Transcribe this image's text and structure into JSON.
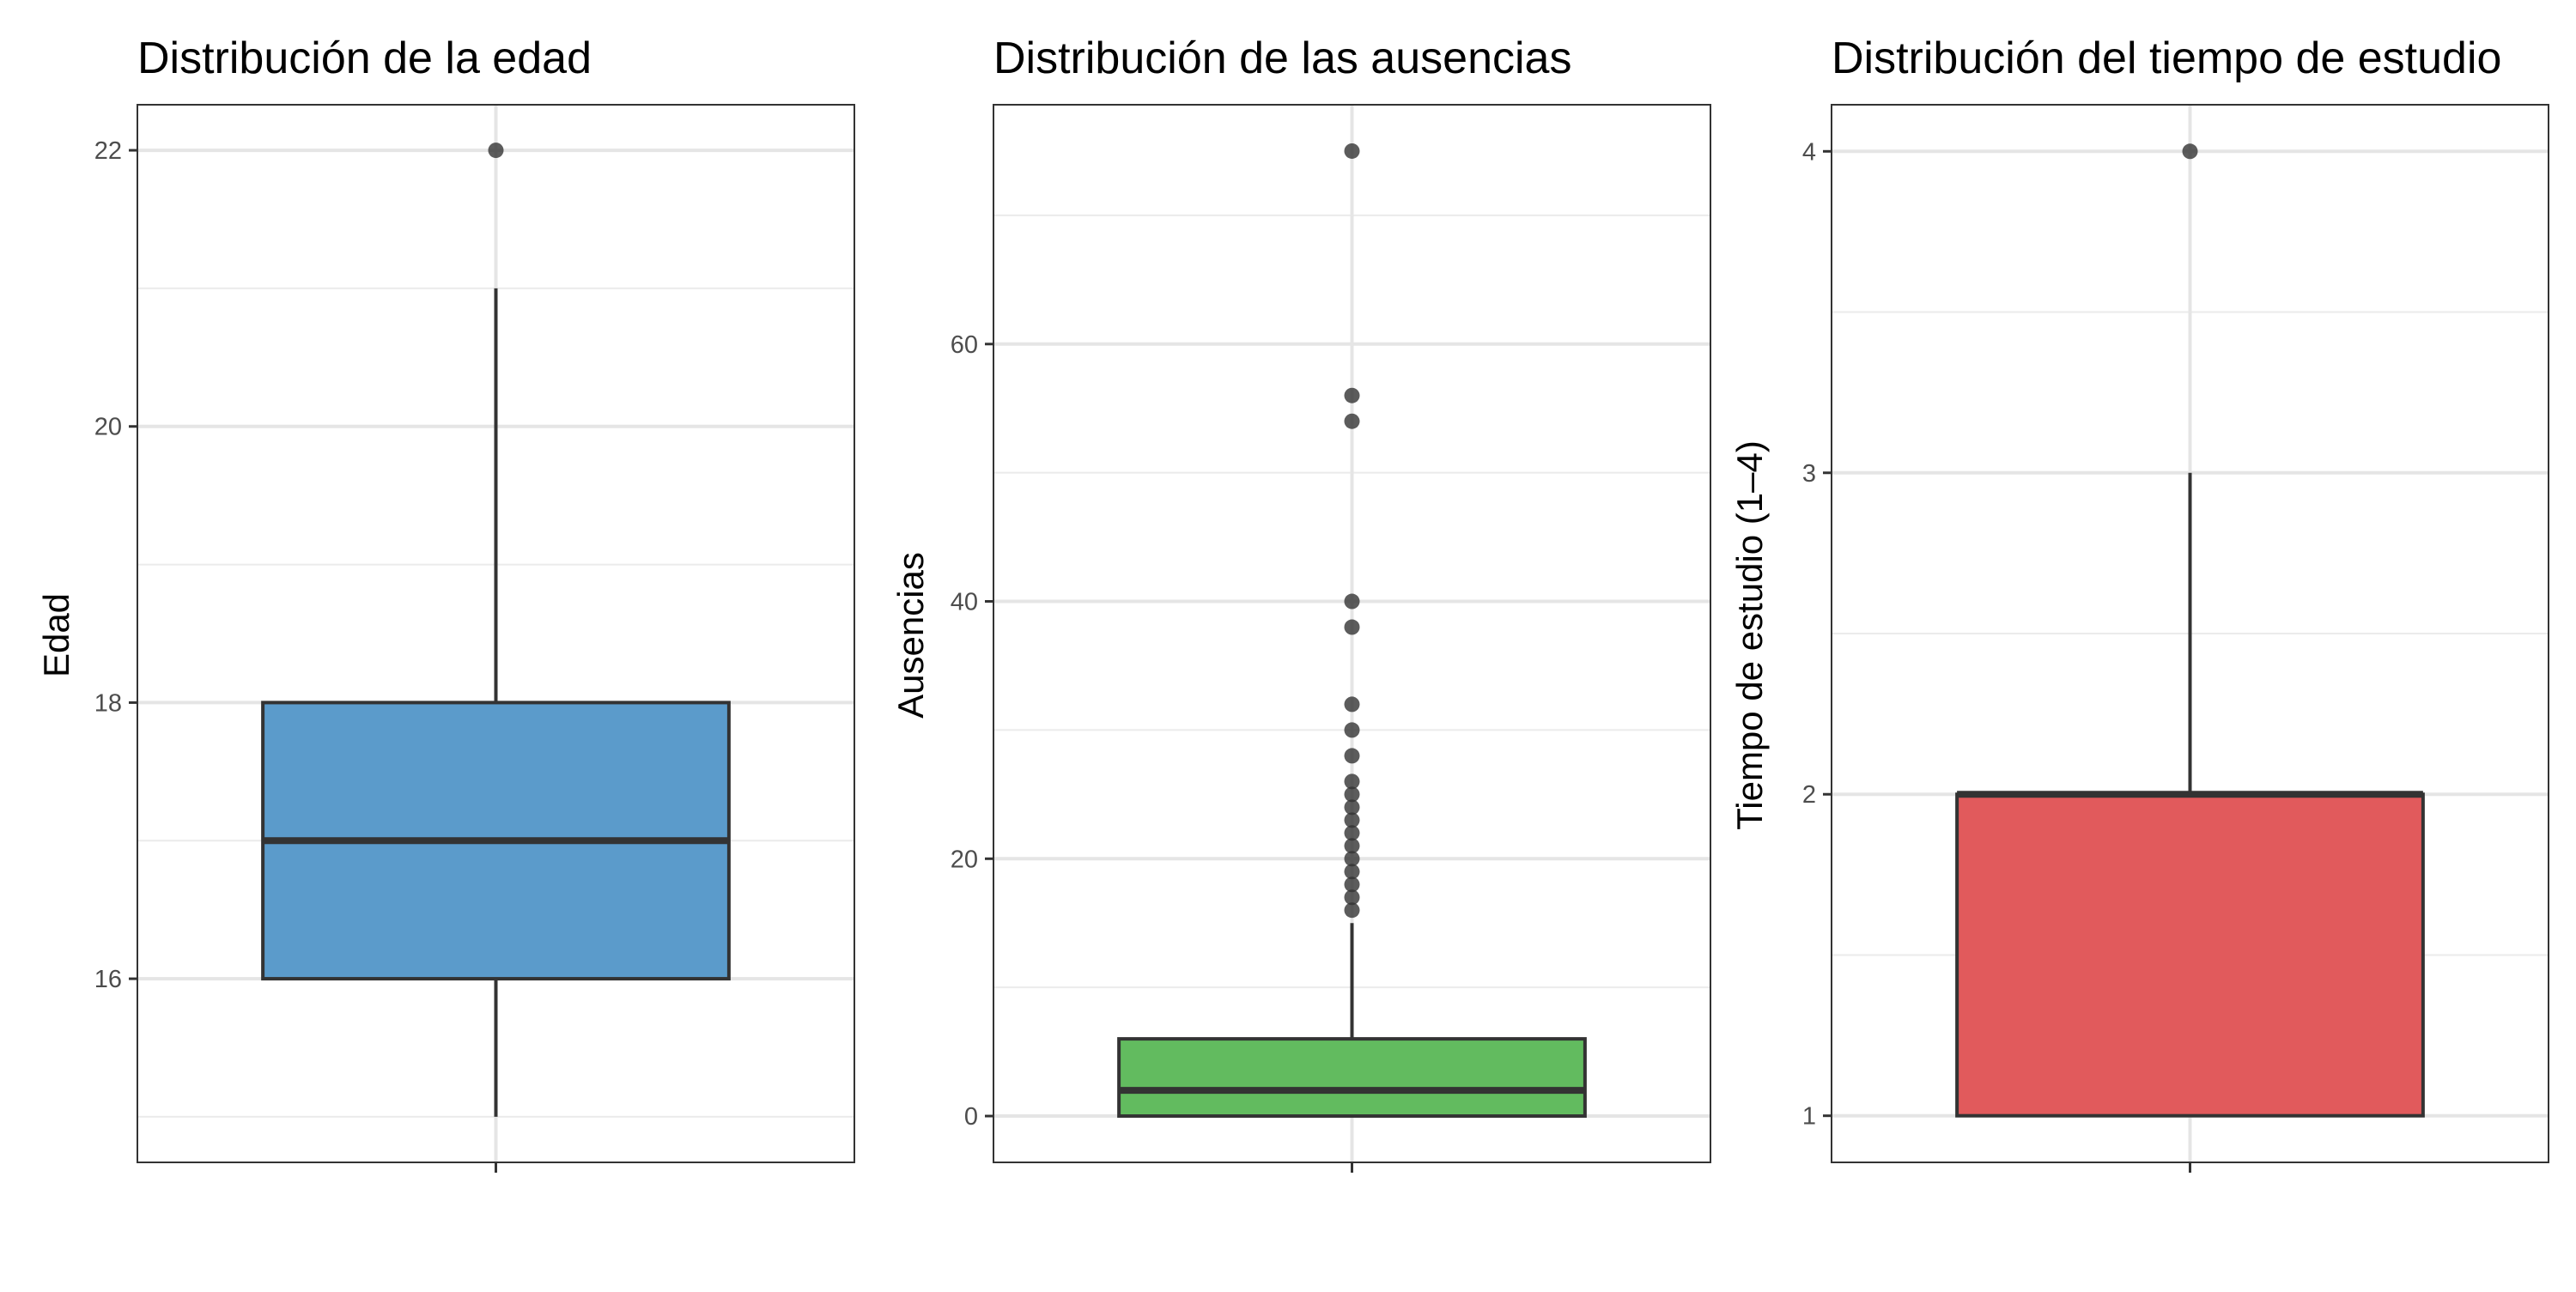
{
  "chart_data": [
    {
      "type": "box",
      "title": "Distribución de la edad",
      "xlabel": "",
      "ylabel": "Edad",
      "ylim": [
        14.67,
        22.33
      ],
      "yticks": [
        16,
        18,
        20,
        22
      ],
      "color": "#5B9BCB",
      "box": {
        "min": 15,
        "q1": 16,
        "median": 17,
        "q3": 18,
        "max": 21
      },
      "outliers": [
        22
      ],
      "grid": true
    },
    {
      "type": "box",
      "title": "Distribución de las ausencias",
      "xlabel": "",
      "ylabel": "Ausencias",
      "ylim": [
        -3.6,
        78.6
      ],
      "yticks": [
        0,
        20,
        40,
        60
      ],
      "color": "#62BB5F",
      "box": {
        "min": 0,
        "q1": 0,
        "median": 2,
        "q3": 6,
        "max": 15
      },
      "outliers": [
        16,
        17,
        18,
        19,
        20,
        21,
        22,
        23,
        24,
        25,
        26,
        28,
        30,
        32,
        38,
        40,
        54,
        56,
        75
      ],
      "grid": true
    },
    {
      "type": "box",
      "title": "Distribución del tiempo de estudio",
      "xlabel": "",
      "ylabel": "Tiempo de estudio (1–4)",
      "ylim": [
        0.855,
        4.145
      ],
      "yticks": [
        1,
        2,
        3,
        4
      ],
      "color": "#E15A5C",
      "box": {
        "min": 1,
        "q1": 1,
        "median": 2,
        "q3": 2,
        "max": 3
      },
      "outliers": [
        4
      ],
      "grid": true
    }
  ]
}
